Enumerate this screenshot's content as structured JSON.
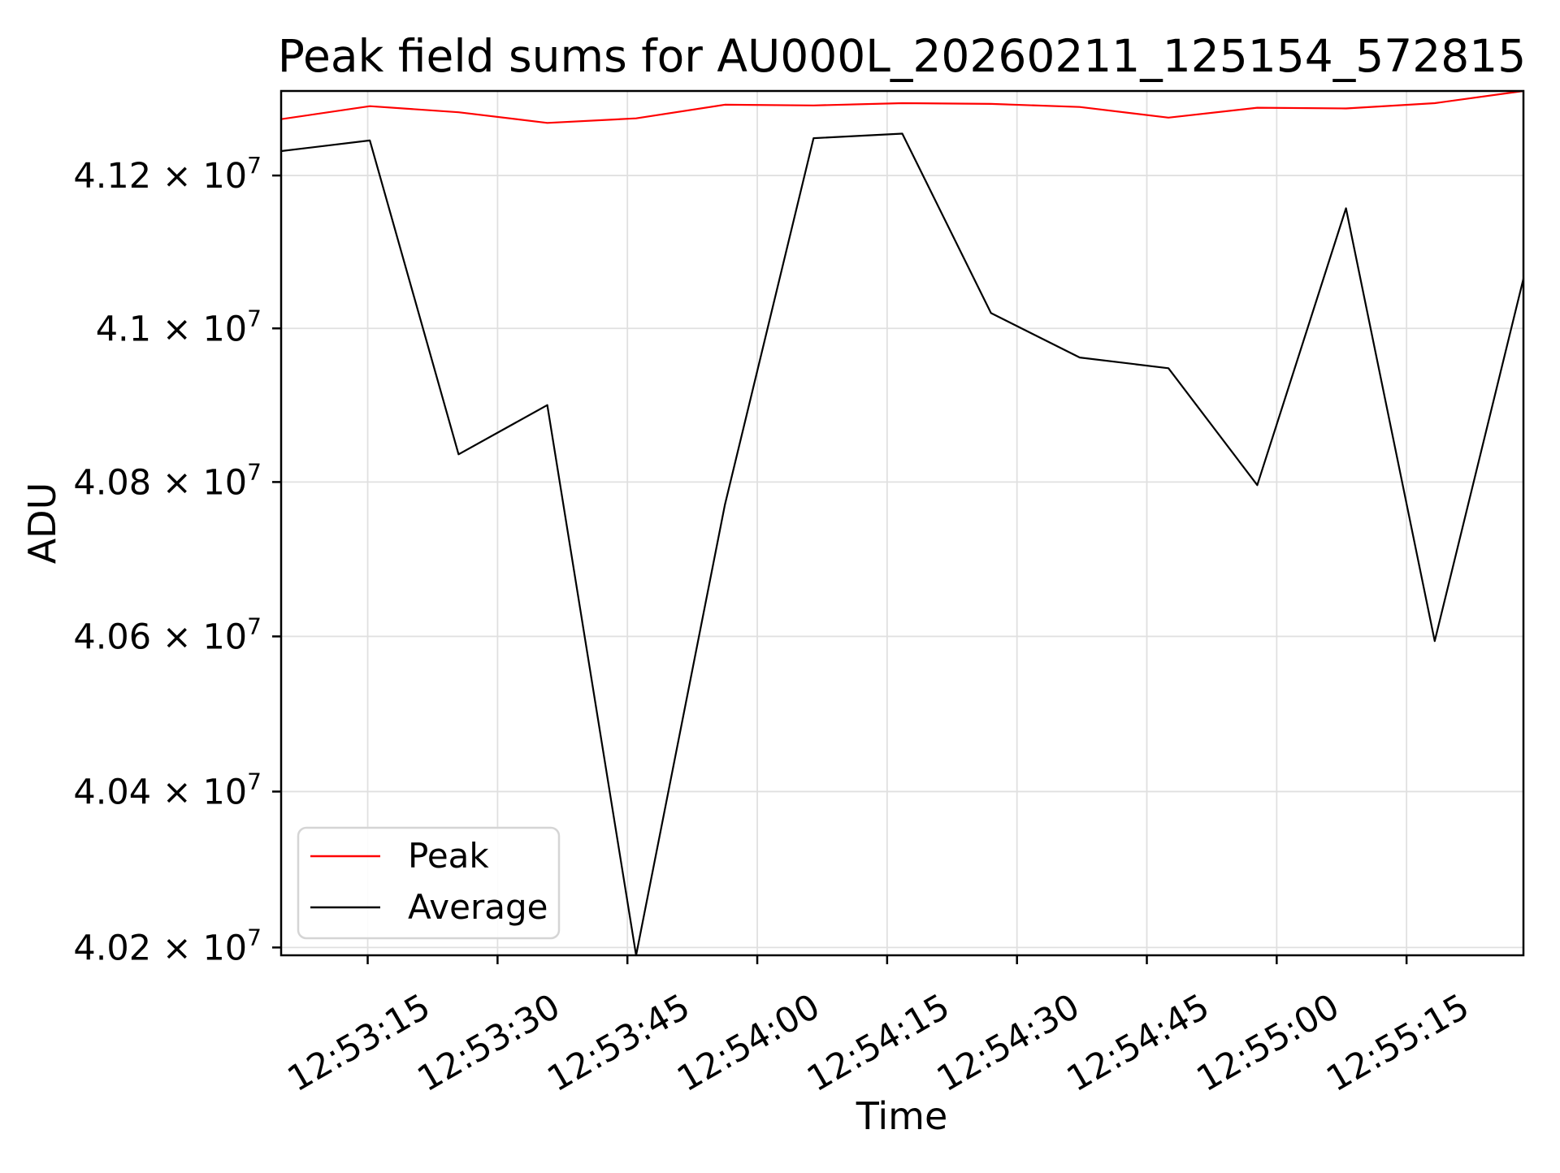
{
  "figure": {
    "title": "Peak field sums for AU000L_20260211_125154_572815"
  },
  "chart_data": {
    "type": "line",
    "title": "Peak field sums for AU000L_20260211_125154_572815",
    "xlabel": "Time",
    "ylabel": "ADU",
    "y_scale": "log",
    "ylim": [
      40190000,
      41311000
    ],
    "y_ticks": [
      {
        "mantissa": "4.02",
        "times_base": " × 10",
        "exponent": "7",
        "value": 40200000
      },
      {
        "mantissa": "4.04",
        "times_base": " × 10",
        "exponent": "7",
        "value": 40400000
      },
      {
        "mantissa": "4.06",
        "times_base": " × 10",
        "exponent": "7",
        "value": 40600000
      },
      {
        "mantissa": "4.08",
        "times_base": " × 10",
        "exponent": "7",
        "value": 40800000
      },
      {
        "mantissa": "4.1",
        "times_base": " × 10",
        "exponent": "7",
        "value": 41000000
      },
      {
        "mantissa": "4.12",
        "times_base": " × 10",
        "exponent": "7",
        "value": 41200000
      }
    ],
    "x_ticks": [
      {
        "label": "12:53:15",
        "offset_s": 10
      },
      {
        "label": "12:53:30",
        "offset_s": 25
      },
      {
        "label": "12:53:45",
        "offset_s": 40
      },
      {
        "label": "12:54:00",
        "offset_s": 55
      },
      {
        "label": "12:54:15",
        "offset_s": 70
      },
      {
        "label": "12:54:30",
        "offset_s": 85
      },
      {
        "label": "12:54:45",
        "offset_s": 100
      },
      {
        "label": "12:55:00",
        "offset_s": 115
      },
      {
        "label": "12:55:15",
        "offset_s": 130
      }
    ],
    "x_start_time": "12:53:05",
    "x_span_s": 143.5,
    "point_interval_s": 10.25,
    "series": [
      {
        "name": "Peak",
        "color": "#ff0000",
        "values": [
          41274000,
          41291000,
          41283000,
          41269000,
          41275000,
          41293000,
          41292000,
          41295000,
          41294000,
          41290000,
          41276000,
          41289000,
          41288000,
          41295000,
          41311000
        ]
      },
      {
        "name": "Average",
        "color": "#000000",
        "values": [
          41232000,
          41246000,
          40836000,
          40900000,
          40190000,
          40770000,
          41249000,
          41255000,
          41020000,
          40962000,
          40948000,
          40796000,
          41157000,
          40594000,
          41065000
        ]
      }
    ],
    "legend": {
      "position": "lower left",
      "entries": [
        "Peak",
        "Average"
      ]
    },
    "grid": true
  },
  "style": {
    "background": "#ffffff",
    "grid_color": "#e0e0e0",
    "spine_color": "#000000",
    "legend_border_color": "#d5d5d5",
    "peak_color": "#ff0000",
    "average_color": "#000000"
  }
}
